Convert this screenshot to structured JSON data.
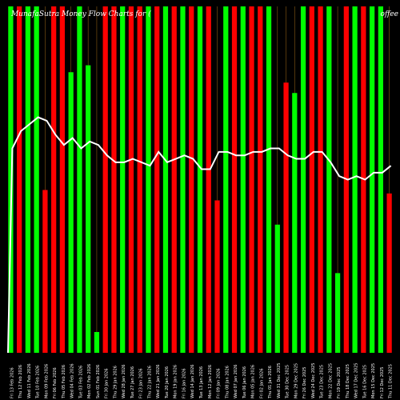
{
  "header": {
    "title": "MunafaSutra Money Flow Charts for (",
    "title_right": "offee"
  },
  "chart_data": {
    "type": "bar",
    "title": "MunafaSutra Money Flow Charts for (",
    "ylim": [
      0,
      100
    ],
    "bar_color_up": "#00ff00",
    "bar_color_down": "#ff0000",
    "line_color": "#ffffff",
    "background": "#000000",
    "grid_line_color": "#8a5a14",
    "categories": [
      "Fri 13 Feb 2026",
      "Thu 12 Feb 2026",
      "Wed 11 Feb 2026",
      "Tue 10 Feb 2026",
      "Mon 09 Feb 2026",
      "Fri 06 Feb 2026",
      "Thu 05 Feb 2026",
      "Wed 04 Feb 2026",
      "Tue 03 Feb 2026",
      "Mon 02 Feb 2026",
      "Sun 01 Feb 2026",
      "Fri 30 Jan 2026",
      "Thu 29 Jan 2026",
      "Wed 28 Jan 2026",
      "Tue 27 Jan 2026",
      "Fri 23 Jan 2026",
      "Thu 22 Jan 2026",
      "Wed 21 Jan 2026",
      "Tue 20 Jan 2026",
      "Mon 19 Jan 2026",
      "Fri 16 Jan 2026",
      "Wed 14 Jan 2026",
      "Tue 13 Jan 2026",
      "Mon 12 Jan 2026",
      "Fri 09 Jan 2026",
      "Thu 08 Jan 2026",
      "Wed 07 Jan 2026",
      "Tue 06 Jan 2026",
      "Mon 05 Jan 2026",
      "Fri 02 Jan 2026",
      "Thu 01 Jan 2026",
      "Wed 31 Dec 2025",
      "Tue 30 Dec 2025",
      "Mon 29 Dec 2025",
      "Fri 26 Dec 2025",
      "Wed 24 Dec 2025",
      "Tue 23 Dec 2025",
      "Mon 22 Dec 2025",
      "Fri 19 Dec 2025",
      "Thu 18 Dec 2025",
      "Wed 17 Dec 2025",
      "Tue 16 Dec 2025",
      "Mon 15 Dec 2025",
      "Fri 12 Dec 2025",
      "Thu 11 Dec 2025"
    ],
    "bars": [
      {
        "dir": "up",
        "value": 100
      },
      {
        "dir": "down",
        "value": 100
      },
      {
        "dir": "up",
        "value": 100
      },
      {
        "dir": "up",
        "value": 100
      },
      {
        "dir": "down",
        "value": 47
      },
      {
        "dir": "down",
        "value": 100
      },
      {
        "dir": "down",
        "value": 100
      },
      {
        "dir": "up",
        "value": 81
      },
      {
        "dir": "up",
        "value": 100
      },
      {
        "dir": "up",
        "value": 83
      },
      {
        "dir": "up",
        "value": 6
      },
      {
        "dir": "down",
        "value": 100
      },
      {
        "dir": "down",
        "value": 100
      },
      {
        "dir": "up",
        "value": 100
      },
      {
        "dir": "down",
        "value": 100
      },
      {
        "dir": "down",
        "value": 100
      },
      {
        "dir": "up",
        "value": 100
      },
      {
        "dir": "down",
        "value": 100
      },
      {
        "dir": "up",
        "value": 100
      },
      {
        "dir": "down",
        "value": 100
      },
      {
        "dir": "up",
        "value": 100
      },
      {
        "dir": "down",
        "value": 100
      },
      {
        "dir": "up",
        "value": 100
      },
      {
        "dir": "down",
        "value": 100
      },
      {
        "dir": "down",
        "value": 44
      },
      {
        "dir": "up",
        "value": 100
      },
      {
        "dir": "down",
        "value": 100
      },
      {
        "dir": "up",
        "value": 100
      },
      {
        "dir": "down",
        "value": 100
      },
      {
        "dir": "down",
        "value": 100
      },
      {
        "dir": "up",
        "value": 100
      },
      {
        "dir": "up",
        "value": 37
      },
      {
        "dir": "down",
        "value": 78
      },
      {
        "dir": "up",
        "value": 75
      },
      {
        "dir": "up",
        "value": 100
      },
      {
        "dir": "down",
        "value": 100
      },
      {
        "dir": "down",
        "value": 100
      },
      {
        "dir": "up",
        "value": 100
      },
      {
        "dir": "up",
        "value": 23
      },
      {
        "dir": "down",
        "value": 100
      },
      {
        "dir": "up",
        "value": 100
      },
      {
        "dir": "down",
        "value": 100
      },
      {
        "dir": "up",
        "value": 100
      },
      {
        "dir": "up",
        "value": 100
      },
      {
        "dir": "down",
        "value": 46
      }
    ],
    "line_values": [
      59,
      64,
      66,
      68,
      67,
      63,
      60,
      62,
      59,
      61,
      60,
      57,
      55,
      55,
      56,
      55,
      54,
      58,
      55,
      56,
      57,
      56,
      53,
      53,
      58,
      58,
      57,
      57,
      58,
      58,
      59,
      59,
      57,
      56,
      56,
      58,
      58,
      55,
      51,
      50,
      51,
      50,
      52,
      52,
      54
    ]
  }
}
